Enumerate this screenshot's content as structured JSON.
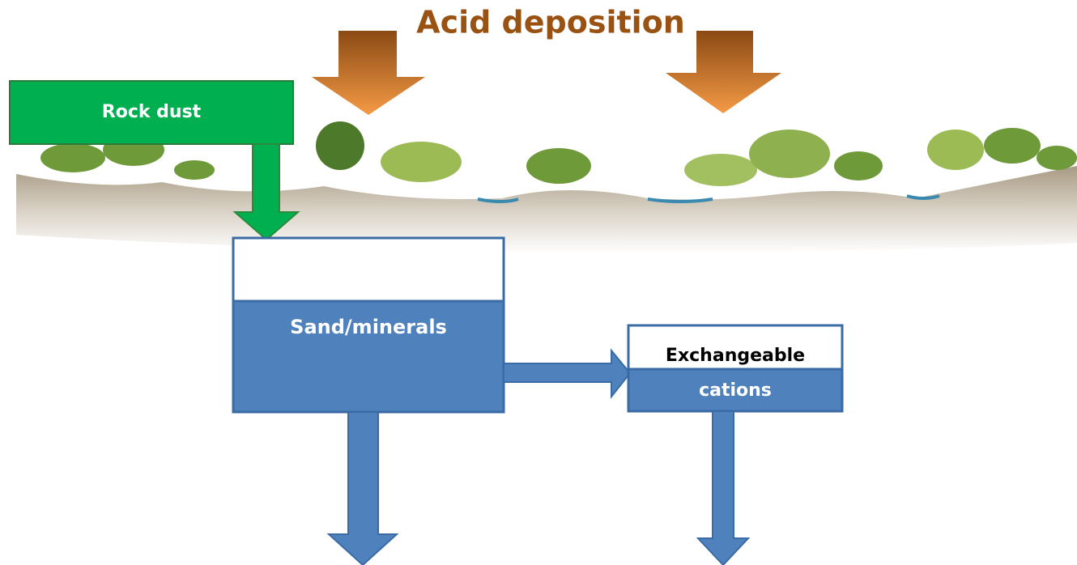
{
  "title": "Acid deposition",
  "nodes": [
    {
      "label": "Rock dust"
    },
    {
      "label": "Sand/minerals"
    },
    {
      "label_lines": [
        "Exchangeable",
        "cations"
      ]
    }
  ]
}
